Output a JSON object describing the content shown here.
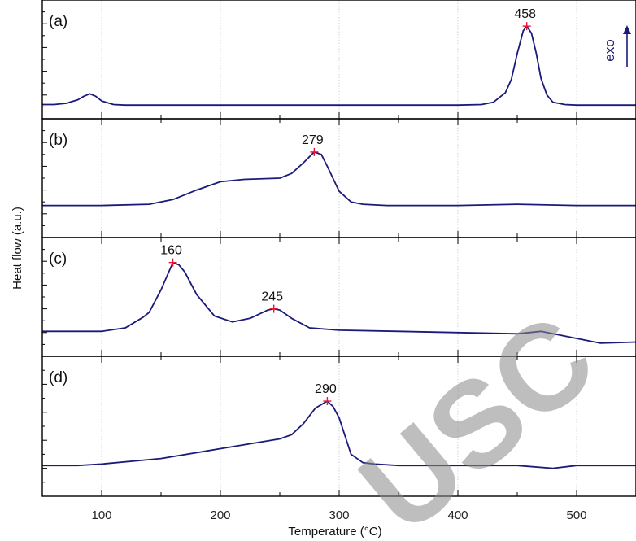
{
  "chart_data": {
    "type": "line",
    "xlabel": "Temperature (°C)",
    "ylabel": "Heat flow (a.u.)",
    "xlim": [
      50,
      550
    ],
    "xticks": [
      100,
      200,
      300,
      400,
      500
    ],
    "grid": true,
    "exo_label": "exo",
    "watermark": "USC",
    "panels": [
      {
        "label": "(a)",
        "ylim": [
          0,
          1
        ],
        "x": [
          50,
          60,
          70,
          80,
          85,
          90,
          95,
          100,
          110,
          120,
          150,
          200,
          300,
          400,
          420,
          430,
          440,
          445,
          450,
          455,
          458,
          462,
          466,
          470,
          475,
          480,
          490,
          500,
          520,
          550
        ],
        "y": [
          0.12,
          0.12,
          0.13,
          0.16,
          0.19,
          0.21,
          0.19,
          0.15,
          0.12,
          0.115,
          0.115,
          0.115,
          0.115,
          0.115,
          0.12,
          0.14,
          0.22,
          0.33,
          0.55,
          0.74,
          0.78,
          0.72,
          0.55,
          0.34,
          0.2,
          0.14,
          0.12,
          0.115,
          0.115,
          0.115
        ],
        "peaks": [
          {
            "x": 458,
            "y": 0.78,
            "label": "458"
          }
        ]
      },
      {
        "label": "(b)",
        "ylim": [
          0,
          1
        ],
        "x": [
          50,
          100,
          140,
          160,
          180,
          200,
          220,
          250,
          260,
          270,
          279,
          285,
          290,
          300,
          310,
          320,
          340,
          400,
          450,
          500,
          550
        ],
        "y": [
          0.27,
          0.27,
          0.28,
          0.32,
          0.4,
          0.47,
          0.49,
          0.5,
          0.54,
          0.63,
          0.72,
          0.7,
          0.6,
          0.39,
          0.3,
          0.28,
          0.27,
          0.27,
          0.28,
          0.27,
          0.27
        ],
        "peaks": [
          {
            "x": 279,
            "y": 0.72,
            "label": "279"
          }
        ]
      },
      {
        "label": "(c)",
        "ylim": [
          0,
          1
        ],
        "x": [
          50,
          100,
          120,
          135,
          140,
          150,
          160,
          165,
          170,
          180,
          195,
          210,
          225,
          240,
          245,
          250,
          260,
          275,
          300,
          350,
          400,
          450,
          470,
          520,
          550
        ],
        "y": [
          0.21,
          0.21,
          0.24,
          0.33,
          0.37,
          0.56,
          0.79,
          0.77,
          0.71,
          0.52,
          0.34,
          0.29,
          0.32,
          0.39,
          0.4,
          0.39,
          0.32,
          0.24,
          0.22,
          0.21,
          0.2,
          0.19,
          0.21,
          0.11,
          0.12
        ],
        "peaks": [
          {
            "x": 160,
            "y": 0.79,
            "label": "160"
          },
          {
            "x": 245,
            "y": 0.4,
            "label": "245"
          }
        ]
      },
      {
        "label": "(d)",
        "ylim": [
          0,
          1
        ],
        "x": [
          50,
          80,
          100,
          150,
          200,
          250,
          260,
          270,
          280,
          290,
          295,
          300,
          305,
          310,
          320,
          330,
          350,
          400,
          450,
          480,
          500,
          550
        ],
        "y": [
          0.22,
          0.22,
          0.23,
          0.27,
          0.34,
          0.41,
          0.44,
          0.52,
          0.63,
          0.68,
          0.64,
          0.56,
          0.43,
          0.3,
          0.24,
          0.23,
          0.22,
          0.22,
          0.22,
          0.2,
          0.22,
          0.22
        ],
        "peaks": [
          {
            "x": 290,
            "y": 0.68,
            "label": "290"
          }
        ]
      }
    ]
  }
}
